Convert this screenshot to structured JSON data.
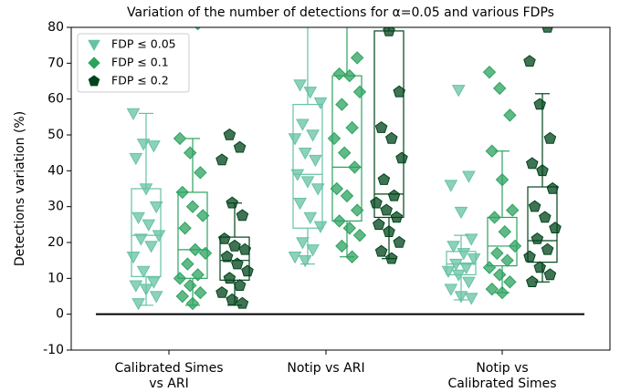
{
  "chart_data": {
    "type": "box",
    "title": "Variation of the number of detections for α=0.05 and various FDPs",
    "ylabel": "Detections variation (%)",
    "categories": [
      "Calibrated Simes\nvs ARI",
      "Notip vs ARI",
      "Notip vs\nCalibrated Simes"
    ],
    "ylim": [
      -10,
      80
    ],
    "yticks": [
      -10,
      0,
      10,
      20,
      30,
      40,
      50,
      60,
      70,
      80
    ],
    "hline": 0,
    "legend": "upper left",
    "series": [
      {
        "name": "FDP ≤ 0.05",
        "color": "#66c2a4",
        "marker": "triangle-down",
        "boxes": [
          {
            "whislo": 2.5,
            "q1": 10.5,
            "median": 22,
            "q3": 35,
            "whishi": 56
          },
          {
            "whislo": 14,
            "q1": 24,
            "median": 39,
            "q3": 58.5,
            "whishi": 85
          },
          {
            "whislo": 4,
            "q1": 11,
            "median": 14,
            "q3": 17.5,
            "whishi": 22
          }
        ],
        "points": [
          [
            56,
            47.5,
            47,
            43.5,
            35,
            30,
            27,
            25,
            22,
            21,
            19,
            16,
            12,
            9,
            8,
            7,
            5,
            3
          ],
          [
            64,
            62,
            59,
            53,
            50,
            49,
            45,
            43,
            39,
            37,
            35,
            31,
            27,
            24.5,
            20,
            18,
            16,
            15
          ],
          [
            62.5,
            38.5,
            36,
            28.5,
            21,
            19,
            17,
            15.5,
            14,
            13,
            12,
            11,
            9,
            7,
            5,
            4.5
          ]
        ]
      },
      {
        "name": "FDP ≤ 0.1",
        "color": "#2ca25f",
        "marker": "diamond",
        "boxes": [
          {
            "whislo": 2.5,
            "q1": 10,
            "median": 18,
            "q3": 34,
            "whishi": 49
          },
          {
            "whislo": 16,
            "q1": 26,
            "median": 41,
            "q3": 66.5,
            "whishi": 85
          },
          {
            "whislo": 6,
            "q1": 13.5,
            "median": 19,
            "q3": 27,
            "whishi": 45.5
          }
        ],
        "points": [
          [
            81,
            49,
            45,
            39.5,
            34,
            30,
            27.5,
            24,
            18,
            17,
            14,
            11,
            10,
            8,
            6,
            5,
            3
          ],
          [
            71.5,
            67,
            66.5,
            62,
            58.5,
            52,
            49,
            45,
            41,
            35,
            33,
            29,
            26,
            24,
            22,
            19,
            16
          ],
          [
            67.5,
            63,
            55.5,
            45.5,
            37.5,
            29,
            27,
            23,
            19,
            17,
            15,
            13,
            11,
            9,
            7,
            6
          ]
        ]
      },
      {
        "name": "FDP ≤ 0.2",
        "color": "#00441b",
        "marker": "pentagon",
        "boxes": [
          {
            "whislo": 2.5,
            "q1": 9.5,
            "median": 15,
            "q3": 21.5,
            "whishi": 31
          },
          {
            "whislo": 15.5,
            "q1": 27,
            "median": 33.5,
            "q3": 79,
            "whishi": 85
          },
          {
            "whislo": 9,
            "q1": 14.5,
            "median": 20.5,
            "q3": 35.5,
            "whishi": 61.5
          }
        ],
        "points": [
          [
            50,
            46.5,
            43,
            31,
            27.5,
            21,
            19,
            18,
            16,
            14,
            12,
            10,
            8,
            6,
            4,
            3
          ],
          [
            79,
            62,
            52,
            49,
            43.5,
            37.5,
            33,
            31,
            29,
            27,
            25,
            23,
            20,
            17.5,
            15.5
          ],
          [
            80,
            70.5,
            58.5,
            49,
            42,
            40,
            35,
            30,
            27,
            24,
            21,
            18,
            16,
            13,
            11,
            9
          ]
        ]
      }
    ]
  }
}
